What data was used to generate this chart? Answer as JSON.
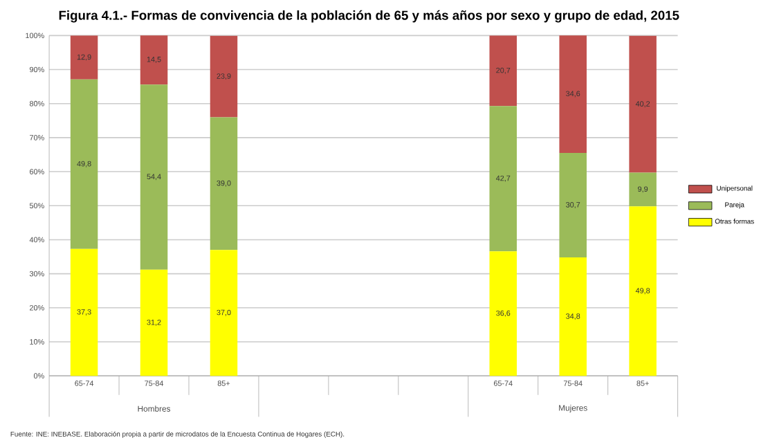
{
  "chart_data": {
    "type": "bar",
    "stacked": true,
    "title": "Figura 4.1.- Formas de convivencia de la población de 65 y más años por sexo y grupo de edad, 2015",
    "categories": [
      "65-74",
      "75-84",
      "85+",
      null,
      null,
      null,
      "65-74",
      "75-84",
      "85+"
    ],
    "series": [
      {
        "name": "Otras formas",
        "color": "#ffff00",
        "values": [
          37.3,
          31.2,
          37.0,
          null,
          null,
          null,
          36.6,
          34.8,
          49.8
        ],
        "value_labels": [
          "37,3",
          "31,2",
          "37,0",
          null,
          null,
          null,
          "36,6",
          "34,8",
          "49,8"
        ]
      },
      {
        "name": "Pareja",
        "color": "#9bbb59",
        "values": [
          49.8,
          54.4,
          39.0,
          null,
          null,
          null,
          42.7,
          30.7,
          9.9
        ],
        "value_labels": [
          "49,8",
          "54,4",
          "39,0",
          null,
          null,
          null,
          "42,7",
          "30,7",
          "9,9"
        ]
      },
      {
        "name": "Unipersonal",
        "color": "#c0504d",
        "values": [
          12.9,
          14.5,
          23.9,
          null,
          null,
          null,
          20.7,
          34.6,
          40.2
        ],
        "value_labels": [
          "12,9",
          "14,5",
          "23,9",
          null,
          null,
          null,
          "20,7",
          "34,6",
          "40,2"
        ]
      }
    ],
    "ylim": [
      0,
      100
    ],
    "yticks": [
      {
        "value": 0,
        "label": "0%"
      },
      {
        "value": 10,
        "label": "10%"
      },
      {
        "value": 20,
        "label": "20%"
      },
      {
        "value": 30,
        "label": "30%"
      },
      {
        "value": 40,
        "label": "40%"
      },
      {
        "value": 50,
        "label": "50%"
      },
      {
        "value": 60,
        "label": "60%"
      },
      {
        "value": 70,
        "label": "70%"
      },
      {
        "value": 80,
        "label": "80%"
      },
      {
        "value": 90,
        "label": "90%"
      },
      {
        "value": 100,
        "label": "100%"
      }
    ],
    "grid": "y",
    "legend": "right",
    "annotations": [
      "Hombres",
      "Mujeres",
      "Fuente: INE: INEBASE. Elaboración propia a partir de microdatos de la Encuesta Continua de Hogares (ECH)."
    ]
  }
}
